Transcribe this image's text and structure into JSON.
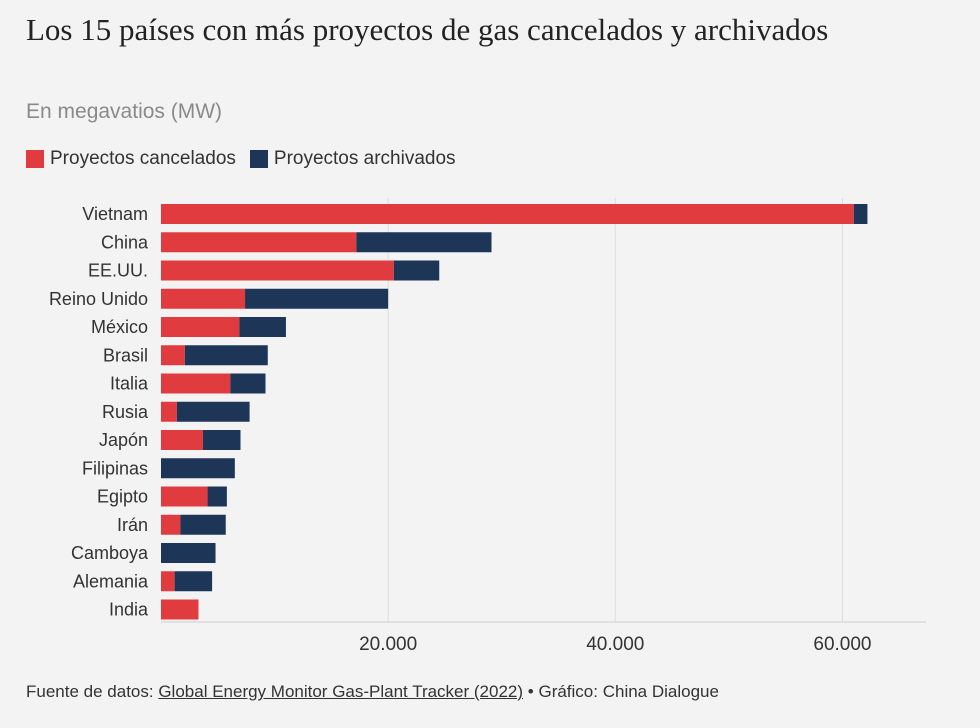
{
  "header": {
    "title": "Los 15 países con más proyectos de gas cancelados y archivados",
    "subtitle": "En megavatios (MW)"
  },
  "legend": {
    "cancelled_label": "Proyectos cancelados",
    "shelved_label": "Proyectos archivados"
  },
  "colors": {
    "cancelled": "#e03c3f",
    "shelved": "#1d3557",
    "grid": "#dddddd",
    "text": "#333333"
  },
  "footer": {
    "prefix": "Fuente de datos:",
    "source_link": "Global Energy Monitor Gas-Plant Tracker (2022)",
    "separator": "•",
    "credit": "Gráfico: China Dialogue"
  },
  "chart_data": {
    "type": "bar",
    "orientation": "horizontal",
    "stacked": true,
    "categories": [
      "Vietnam",
      "China",
      "EE.UU.",
      "Reino Unido",
      "México",
      "Brasil",
      "Italia",
      "Rusia",
      "Japón",
      "Filipinas",
      "Egipto",
      "Irán",
      "Camboya",
      "Alemania",
      "India"
    ],
    "series": [
      {
        "name": "Proyectos cancelados",
        "values": [
          61000,
          17200,
          20500,
          7400,
          6900,
          2100,
          6100,
          1400,
          3700,
          0,
          4100,
          1700,
          0,
          1200,
          3300
        ]
      },
      {
        "name": "Proyectos archivados",
        "values": [
          1200,
          11900,
          4000,
          12600,
          4100,
          7300,
          3100,
          6400,
          3300,
          6500,
          1700,
          4000,
          4800,
          3300,
          0
        ]
      }
    ],
    "xlim": [
      0,
      65000
    ],
    "xticks": [
      20000,
      40000,
      60000
    ],
    "xtick_labels": [
      "20.000",
      "40.000",
      "60.000"
    ],
    "grid": true,
    "legend_position": "top-left"
  }
}
